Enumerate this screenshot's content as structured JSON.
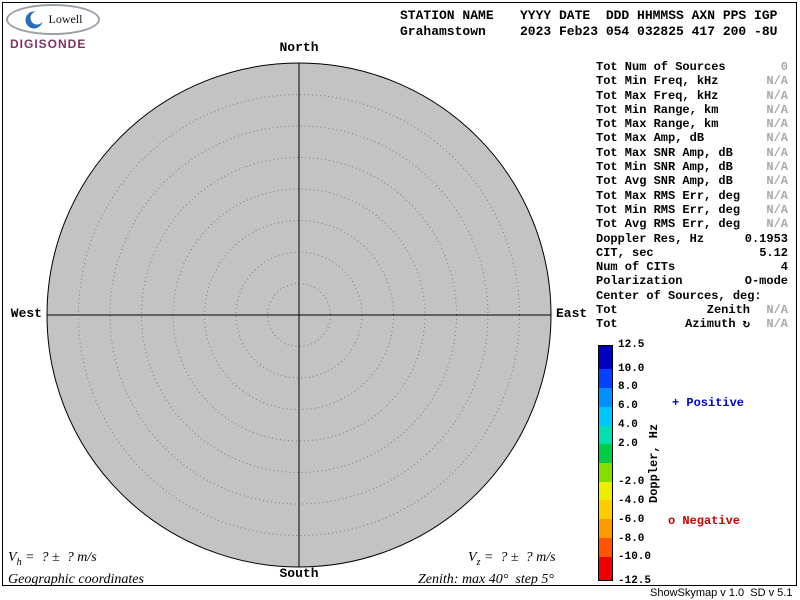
{
  "logo": {
    "name": "Lowell",
    "product": "DIGISONDE",
    "swoosh_color": "#2a6db8",
    "brand_color": "#7b3366"
  },
  "header": {
    "station_label": "STATION NAME",
    "station_value": "Grahamstown",
    "fields_label": "YYYY DATE  DDD HHMMSS AXN PPS IGP",
    "fields_value": "2023 Feb23 054 032825 417 200 -8U"
  },
  "compass": {
    "north": "North",
    "south": "South",
    "east": "East",
    "west": "West"
  },
  "skymap": {
    "fill_color": "#c3c3c3",
    "zenith_max_deg": 40,
    "zenith_step_deg": 5
  },
  "stats": {
    "rows": [
      {
        "label": "Tot Num of Sources",
        "value": "0",
        "muted": true
      },
      {
        "label": "Tot Min Freq, kHz",
        "value": "N/A",
        "muted": true
      },
      {
        "label": "Tot Max Freq, kHz",
        "value": "N/A",
        "muted": true
      },
      {
        "label": "Tot Min Range, km",
        "value": "N/A",
        "muted": true
      },
      {
        "label": "Tot Max Range, km",
        "value": "N/A",
        "muted": true
      },
      {
        "label": "Tot Max Amp, dB",
        "value": "N/A",
        "muted": true
      },
      {
        "label": "Tot Max SNR Amp, dB",
        "value": "N/A",
        "muted": true
      },
      {
        "label": "Tot Min SNR Amp, dB",
        "value": "N/A",
        "muted": true
      },
      {
        "label": "Tot Avg SNR Amp, dB",
        "value": "N/A",
        "muted": true
      },
      {
        "label": "Tot Max RMS Err, deg",
        "value": "N/A",
        "muted": true
      },
      {
        "label": "Tot Min RMS Err, deg",
        "value": "N/A",
        "muted": true
      },
      {
        "label": "Tot Avg RMS Err, deg",
        "value": "N/A",
        "muted": true
      },
      {
        "label": "Doppler Res, Hz",
        "value": "0.1953",
        "muted": false
      },
      {
        "label": "CIT, sec",
        "value": "5.12",
        "muted": false
      },
      {
        "label": "Num of CITs",
        "value": "4",
        "muted": false
      },
      {
        "label": "Polarization",
        "value": "O-mode",
        "muted": false
      },
      {
        "label": "Center of Sources, deg:",
        "value": "",
        "muted": false
      },
      {
        "label": "Tot",
        "mid": "Zenith",
        "value": "N/A",
        "muted": true
      },
      {
        "label": "Tot",
        "mid": "Azimuth ↻",
        "value": "N/A",
        "muted": true
      }
    ]
  },
  "colorbar": {
    "title": "Doppler, Hz",
    "max": 12.5,
    "min": -12.5,
    "bands": [
      {
        "from": 12.5,
        "to": 10,
        "color": "#0000c0"
      },
      {
        "from": 10,
        "to": 8,
        "color": "#0040ff"
      },
      {
        "from": 8,
        "to": 6,
        "color": "#0090ff"
      },
      {
        "from": 6,
        "to": 4,
        "color": "#00c8ff"
      },
      {
        "from": 4,
        "to": 2,
        "color": "#00e0b0"
      },
      {
        "from": 2,
        "to": 0,
        "color": "#00cc44"
      },
      {
        "from": 0,
        "to": -2,
        "color": "#88dd00"
      },
      {
        "from": -2,
        "to": -4,
        "color": "#eeee00"
      },
      {
        "from": -4,
        "to": -6,
        "color": "#ffcc00"
      },
      {
        "from": -6,
        "to": -8,
        "color": "#ff9900"
      },
      {
        "from": -8,
        "to": -10,
        "color": "#ff5500"
      },
      {
        "from": -10,
        "to": -12.5,
        "color": "#ee0000"
      }
    ],
    "ticks": [
      "12.5",
      "10.0",
      "8.0",
      "6.0",
      "4.0",
      "2.0",
      "-2.0",
      "-4.0",
      "-6.0",
      "-8.0",
      "-10.0",
      "-12.5"
    ],
    "positive_label": "+ Positive",
    "negative_label": "o Negative",
    "positive_color": "#0000cc",
    "negative_color": "#cc0000"
  },
  "footer": {
    "vh_var": "V",
    "vh_sub": "h",
    "vh_rest": " =  ? ±  ? m/s",
    "vz_var": "V",
    "vz_sub": "z",
    "vz_rest": " =  ? ±  ? m/s",
    "coords": "Geographic coordinates",
    "zenith": "Zenith: max 40°  step 5°",
    "version": "ShowSkymap v 1.0  SD v 5.1"
  }
}
